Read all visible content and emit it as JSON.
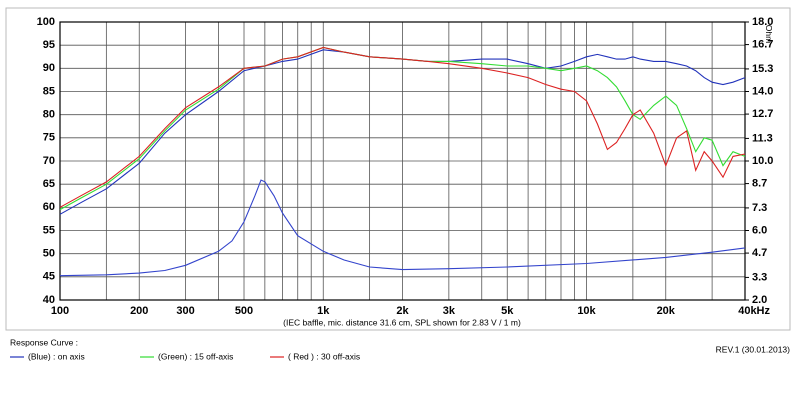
{
  "chart_data": {
    "type": "line",
    "caption": "(IEC baffle, mic. distance 31.6 cm, SPL shown for 2.83 V / 1 m)",
    "legend_title": "Response Curve :",
    "revision": "REV.1 (30.01.2013)",
    "y2label": "Ohm",
    "log_x": true,
    "grid": true,
    "xlim": [
      100,
      40000
    ],
    "xticks": [
      100,
      200,
      300,
      500,
      {
        "value": 1000,
        "label": "1k"
      },
      {
        "value": 2000,
        "label": "2k"
      },
      {
        "value": 3000,
        "label": "3k"
      },
      {
        "value": 5000,
        "label": "5k"
      },
      {
        "value": 10000,
        "label": "10k"
      },
      {
        "value": 20000,
        "label": "20k"
      },
      {
        "value": 40000,
        "label": "40kHz"
      }
    ],
    "xminor": [
      150,
      400,
      600,
      700,
      800,
      900,
      1500,
      4000,
      6000,
      7000,
      8000,
      9000,
      15000,
      30000
    ],
    "ylim": [
      40,
      100
    ],
    "yticks": [
      40,
      45,
      50,
      55,
      60,
      65,
      70,
      75,
      80,
      85,
      90,
      95,
      100
    ],
    "y2lim": [
      2,
      18
    ],
    "y2ticks": [
      {
        "value": 2,
        "label": "2.0"
      },
      3.3,
      4.7,
      {
        "value": 6,
        "label": "6.0"
      },
      7.3,
      8.7,
      {
        "value": 10,
        "label": "10.0"
      },
      11.3,
      12.7,
      {
        "value": 14,
        "label": "14.0"
      },
      15.3,
      16.7,
      {
        "value": 18,
        "label": "18.0"
      }
    ],
    "x": [
      100,
      120,
      150,
      200,
      250,
      300,
      400,
      500,
      600,
      700,
      800,
      1000,
      1200,
      1500,
      2000,
      2500,
      3000,
      4000,
      5000,
      6000,
      7000,
      8000,
      9000,
      10000,
      11000,
      12000,
      13000,
      14000,
      15000,
      16000,
      18000,
      20000,
      22000,
      24000,
      26000,
      28000,
      30000,
      33000,
      36000,
      40000
    ],
    "series": [
      {
        "name": "(Blue) : on axis",
        "color": "#2233bb",
        "values": [
          58.5,
          61,
          64,
          69.5,
          76,
          80,
          85,
          89.5,
          90.5,
          91.5,
          92,
          94,
          93.5,
          92.5,
          92,
          91.5,
          91.5,
          92,
          92,
          91,
          90,
          90.5,
          91.5,
          92.5,
          93,
          92.5,
          92,
          92,
          92.5,
          92,
          91.5,
          91.5,
          91,
          90.5,
          89.5,
          88,
          87,
          86.5,
          87,
          88
        ]
      },
      {
        "name": "(Green) : 15 off-axis",
        "color": "#33dd33",
        "values": [
          59.5,
          62,
          65,
          70.5,
          76.5,
          81,
          85.5,
          90,
          90.5,
          92,
          92.5,
          94.5,
          93.5,
          92.5,
          92,
          91.5,
          91.5,
          91,
          90.5,
          90.5,
          90,
          89.5,
          90,
          90.5,
          89.5,
          88,
          86,
          83,
          80,
          79,
          82,
          84,
          82,
          77,
          72,
          75,
          74.5,
          69,
          72,
          71
        ]
      },
      {
        "name": "( Red ) : 30 off-axis",
        "color": "#dd2222",
        "values": [
          60,
          62.5,
          65.5,
          71,
          77,
          81.5,
          86,
          90,
          90.5,
          92,
          92.5,
          94.5,
          93.5,
          92.5,
          92,
          91.5,
          91,
          90,
          89,
          88,
          86.5,
          85.5,
          85,
          83,
          78,
          72.5,
          74,
          77,
          80,
          81,
          76,
          69,
          75,
          76.5,
          68,
          72,
          70,
          66.5,
          71,
          71.5
        ]
      },
      {
        "color": "#3344cc",
        "axis": "y2",
        "x": [
          100,
          150,
          200,
          250,
          300,
          400,
          450,
          500,
          550,
          580,
          600,
          650,
          700,
          800,
          1000,
          1200,
          1500,
          2000,
          3000,
          5000,
          10000,
          20000,
          30000,
          40000
        ],
        "values": [
          3.4,
          3.45,
          3.55,
          3.7,
          4.0,
          4.8,
          5.4,
          6.5,
          8.0,
          8.9,
          8.8,
          8.0,
          7.0,
          5.7,
          4.8,
          4.3,
          3.9,
          3.75,
          3.8,
          3.9,
          4.1,
          4.45,
          4.75,
          5.0
        ]
      }
    ]
  }
}
